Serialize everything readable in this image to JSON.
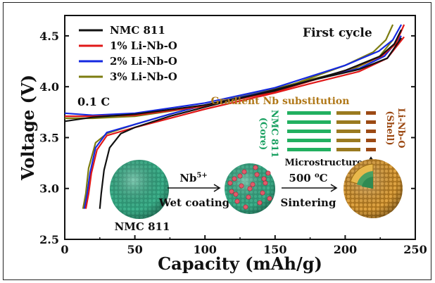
{
  "chart_data": {
    "type": "line",
    "title": "",
    "xlabel": "Capacity (mAh/g)",
    "ylabel": "Voltage (V)",
    "xlim": [
      0,
      250
    ],
    "ylim": [
      2.5,
      4.7
    ],
    "xticks": [
      "0",
      "50",
      "100",
      "150",
      "200",
      "250"
    ],
    "yticks": [
      "2.5",
      "3.0",
      "3.5",
      "4.0",
      "4.5"
    ],
    "legend_position": "top-left",
    "annotations": {
      "cycle": "First cycle",
      "rate": "0.1 C"
    },
    "series": [
      {
        "name": "NMC 811",
        "color": "#111111",
        "charge": [
          [
            0,
            3.66
          ],
          [
            20,
            3.7
          ],
          [
            50,
            3.73
          ],
          [
            100,
            3.82
          ],
          [
            150,
            3.96
          ],
          [
            200,
            4.16
          ],
          [
            225,
            4.3
          ],
          [
            235,
            4.42
          ],
          [
            240,
            4.56
          ]
        ],
        "discharge": [
          [
            240,
            4.48
          ],
          [
            230,
            4.28
          ],
          [
            210,
            4.17
          ],
          [
            175,
            4.06
          ],
          [
            150,
            3.97
          ],
          [
            100,
            3.8
          ],
          [
            75,
            3.71
          ],
          [
            50,
            3.6
          ],
          [
            40,
            3.54
          ],
          [
            32,
            3.4
          ],
          [
            28,
            3.18
          ],
          [
            26,
            2.95
          ],
          [
            25,
            2.8
          ]
        ]
      },
      {
        "name": "1% Li-Nb-O",
        "color": "#e01818",
        "charge": [
          [
            0,
            3.71
          ],
          [
            20,
            3.71
          ],
          [
            50,
            3.72
          ],
          [
            100,
            3.81
          ],
          [
            150,
            3.95
          ],
          [
            200,
            4.16
          ],
          [
            226,
            4.3
          ],
          [
            236,
            4.42
          ],
          [
            242,
            4.61
          ]
        ],
        "discharge": [
          [
            242,
            4.49
          ],
          [
            230,
            4.28
          ],
          [
            210,
            4.15
          ],
          [
            175,
            4.03
          ],
          [
            150,
            3.94
          ],
          [
            100,
            3.78
          ],
          [
            75,
            3.69
          ],
          [
            50,
            3.6
          ],
          [
            30,
            3.52
          ],
          [
            23,
            3.38
          ],
          [
            19,
            3.15
          ],
          [
            17,
            2.95
          ],
          [
            15,
            2.8
          ]
        ]
      },
      {
        "name": "2% Li-Nb-O",
        "color": "#1428e0",
        "charge": [
          [
            0,
            3.74
          ],
          [
            20,
            3.72
          ],
          [
            50,
            3.74
          ],
          [
            100,
            3.84
          ],
          [
            150,
            3.99
          ],
          [
            200,
            4.21
          ],
          [
            224,
            4.35
          ],
          [
            234,
            4.46
          ],
          [
            240,
            4.61
          ]
        ],
        "discharge": [
          [
            240,
            4.5
          ],
          [
            228,
            4.3
          ],
          [
            210,
            4.18
          ],
          [
            175,
            4.06
          ],
          [
            150,
            3.97
          ],
          [
            100,
            3.82
          ],
          [
            75,
            3.73
          ],
          [
            50,
            3.63
          ],
          [
            30,
            3.55
          ],
          [
            22,
            3.4
          ],
          [
            18,
            3.15
          ],
          [
            16,
            2.95
          ],
          [
            14,
            2.8
          ]
        ]
      },
      {
        "name": "3% Li-Nb-O",
        "color": "#7c7c10",
        "charge": [
          [
            0,
            3.69
          ],
          [
            20,
            3.69
          ],
          [
            50,
            3.71
          ],
          [
            100,
            3.81
          ],
          [
            150,
            3.96
          ],
          [
            200,
            4.21
          ],
          [
            220,
            4.34
          ],
          [
            229,
            4.46
          ],
          [
            234,
            4.61
          ]
        ],
        "discharge": [
          [
            234,
            4.46
          ],
          [
            224,
            4.29
          ],
          [
            205,
            4.17
          ],
          [
            175,
            4.07
          ],
          [
            150,
            3.98
          ],
          [
            100,
            3.82
          ],
          [
            75,
            3.73
          ],
          [
            50,
            3.63
          ],
          [
            30,
            3.54
          ],
          [
            22,
            3.45
          ],
          [
            17,
            3.2
          ],
          [
            15,
            2.95
          ],
          [
            13,
            2.8
          ]
        ]
      }
    ],
    "inset": {
      "title": "Gradient Nb substitution",
      "core_label": [
        "NMC 811",
        "(Core)"
      ],
      "shell_label": [
        "Li-Nb-O",
        "(Shell)"
      ],
      "microstructure_label": "Microstructure",
      "process": {
        "particle_label": "NMC 811",
        "step1_top": "Nb",
        "step1_superscript": "5+",
        "step1_bottom": "Wet coating",
        "step2_top": "500 ",
        "step2_superscript": "o",
        "step2_unit": "C",
        "step2_bottom": "Sintering"
      }
    }
  }
}
